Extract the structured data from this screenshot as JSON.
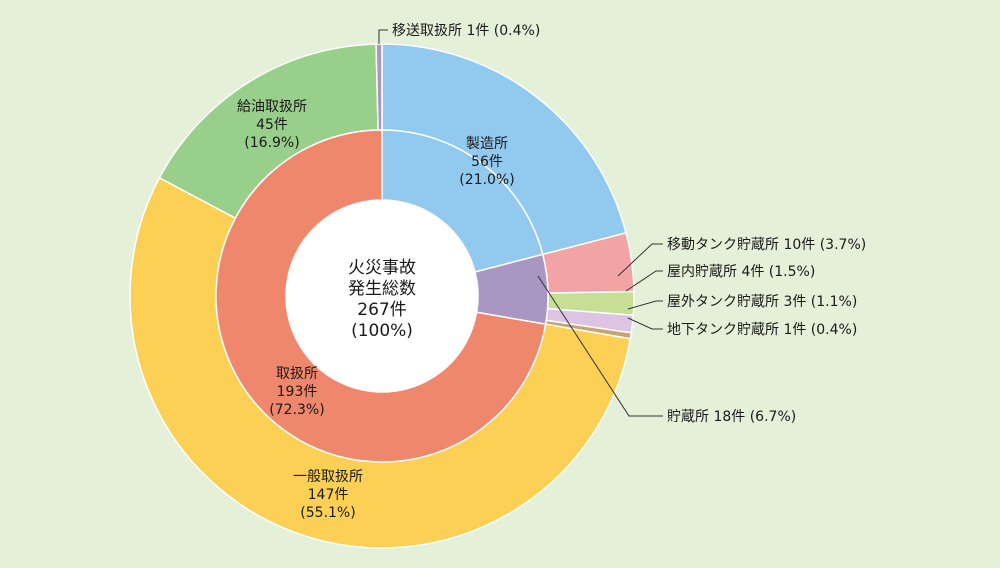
{
  "chart_data": {
    "type": "pie",
    "subtype": "nested-donut",
    "center_label": {
      "lines": [
        "火災事故",
        "発生総数",
        "267件",
        "(100%)"
      ]
    },
    "inner_ring": [
      {
        "name": "製造所",
        "count_label": "56件",
        "pct_label": "(21.0%)",
        "value": 56,
        "percent": 21.0,
        "color": "#92c9ee"
      },
      {
        "name": "貯蔵所",
        "count_label": "18件",
        "pct_label": "(6.7%)",
        "value": 18,
        "percent": 6.7,
        "color": "#a996c2",
        "label": "貯蔵所 18件 (6.7%)"
      },
      {
        "name": "取扱所",
        "count_label": "193件",
        "pct_label": "(72.3%)",
        "value": 193,
        "percent": 72.3,
        "color": "#ef876d"
      }
    ],
    "outer_ring": [
      {
        "name": "製造所",
        "value": 56,
        "percent": 21.0,
        "color": "#92c9ee"
      },
      {
        "name": "移動タンク貯蔵所",
        "value": 10,
        "percent": 3.7,
        "color": "#f2a3a3",
        "label": "移動タンク貯蔵所 10件 (3.7%)"
      },
      {
        "name": "屋内貯蔵所",
        "value": 4,
        "percent": 1.5,
        "color": "#c6df95",
        "label": "屋内貯蔵所 4件 (1.5%)"
      },
      {
        "name": "屋外タンク貯蔵所",
        "value": 3,
        "percent": 1.1,
        "color": "#dcc4e2",
        "label": "屋外タンク貯蔵所 3件 (1.1%)"
      },
      {
        "name": "地下タンク貯蔵所",
        "value": 1,
        "percent": 0.4,
        "color": "#c8a374",
        "label": "地下タンク貯蔵所 1件 (0.4%)"
      },
      {
        "name": "一般取扱所",
        "count_label": "147件",
        "pct_label": "(55.1%)",
        "value": 147,
        "percent": 55.1,
        "color": "#fcd055"
      },
      {
        "name": "給油取扱所",
        "count_label": "45件",
        "pct_label": "(16.9%)",
        "value": 45,
        "percent": 16.9,
        "color": "#98cf8b"
      },
      {
        "name": "移送取扱所",
        "value": 1,
        "percent": 0.4,
        "color": "#a996c2",
        "label": "移送取扱所 1件 (0.4%)"
      }
    ]
  }
}
